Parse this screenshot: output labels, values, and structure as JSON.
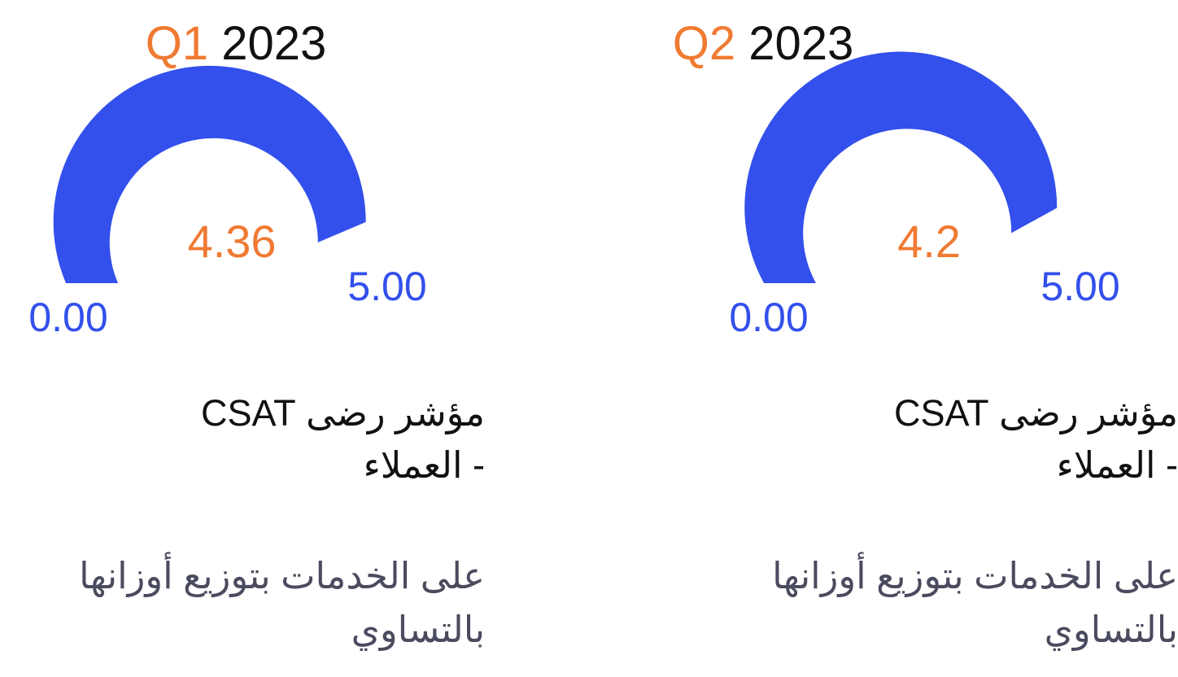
{
  "colors": {
    "accent": "#f07a32",
    "gauge": "#3350ec",
    "title": "#111111",
    "subtitle": "#4a4b5e"
  },
  "chart_data": [
    {
      "type": "gauge",
      "title": {
        "quarter": "Q1",
        "year": "2023"
      },
      "value": 4.36,
      "value_label": "4.36",
      "min": 0,
      "max": 5,
      "min_label": "0.00",
      "max_label": "5.00",
      "metric_title": [
        "مؤشر رضى CSAT",
        "- العملاء"
      ],
      "description": [
        "على الخدمات بتوزيع أوزانها",
        "بالتساوي"
      ]
    },
    {
      "type": "gauge",
      "title": {
        "quarter": "Q2",
        "year": "2023"
      },
      "value": 4.2,
      "value_label": "4.2",
      "min": 0,
      "max": 5,
      "min_label": "0.00",
      "max_label": "5.00",
      "metric_title": [
        "مؤشر رضى CSAT",
        "- العملاء"
      ],
      "description": [
        "على الخدمات بتوزيع أوزانها",
        "بالتساوي"
      ]
    }
  ]
}
